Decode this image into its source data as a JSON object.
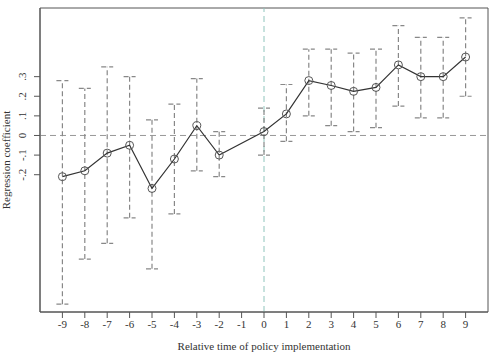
{
  "chart_data": {
    "type": "line",
    "x_label": "Relative time of policy implementation",
    "y_label": "Regression coefficient",
    "x": [
      -9,
      -8,
      -7,
      -6,
      -5,
      -4,
      -3,
      -2,
      0,
      1,
      2,
      3,
      4,
      5,
      6,
      7,
      8,
      9
    ],
    "values": [
      -0.21,
      -0.18,
      -0.09,
      -0.05,
      -0.27,
      -0.12,
      0.05,
      -0.1,
      0.02,
      0.11,
      0.28,
      0.255,
      0.225,
      0.245,
      0.36,
      0.3,
      0.3,
      0.4
    ],
    "ci_low": [
      -0.86,
      -0.63,
      -0.55,
      -0.42,
      -0.68,
      -0.4,
      -0.18,
      -0.21,
      -0.1,
      -0.03,
      0.1,
      0.05,
      0.02,
      0.04,
      0.15,
      0.09,
      0.09,
      0.2
    ],
    "ci_high": [
      0.28,
      0.24,
      0.35,
      0.3,
      0.08,
      0.16,
      0.29,
      0.02,
      0.14,
      0.26,
      0.44,
      0.44,
      0.42,
      0.44,
      0.56,
      0.5,
      0.5,
      0.6
    ],
    "color": "#333333",
    "marker": "circle",
    "xlim": [
      -10,
      10
    ],
    "xticks": [
      -9,
      -8,
      -7,
      -6,
      -5,
      -4,
      -3,
      -2,
      -1,
      0,
      1,
      2,
      3,
      4,
      5,
      6,
      7,
      8,
      9
    ],
    "ylim": [
      -0.9,
      0.65
    ],
    "yticks": [
      {
        "value": -0.2,
        "label": "-.2"
      },
      {
        "value": -0.1,
        "label": "-.1"
      },
      0,
      {
        "value": 0.1,
        "label": ".1"
      },
      {
        "value": 0.2,
        "label": ".2"
      },
      {
        "value": 0.3,
        "label": ".3"
      }
    ],
    "reference_lines": {
      "x": 0,
      "y": 0
    },
    "grid": false
  }
}
